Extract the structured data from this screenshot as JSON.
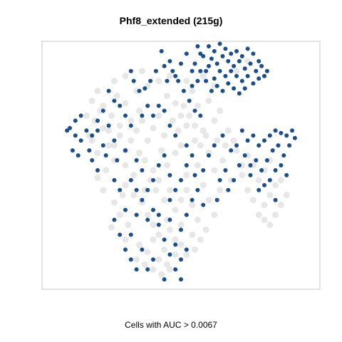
{
  "chart_data": {
    "type": "scatter",
    "title": "Phf8_extended (215g)",
    "xlabel": "Cells with AUC > 0.0067",
    "ylabel": "",
    "xlim": [
      0,
      100
    ],
    "ylim": [
      0,
      100
    ],
    "grid": false,
    "legend": "none",
    "colors": {
      "background_cells": "#d3d3d3",
      "highlighted_cells": "#1a4f8b",
      "frame": "#c8c8c8"
    },
    "series": [
      {
        "role": "background",
        "points": [
          [
            18,
            60
          ],
          [
            20,
            55
          ],
          [
            22,
            65
          ],
          [
            25,
            70
          ],
          [
            28,
            62
          ],
          [
            30,
            75
          ],
          [
            32,
            68
          ],
          [
            35,
            72
          ],
          [
            26,
            52
          ],
          [
            23,
            48
          ],
          [
            30,
            50
          ],
          [
            35,
            55
          ],
          [
            38,
            60
          ],
          [
            40,
            65
          ],
          [
            42,
            70
          ],
          [
            44,
            62
          ],
          [
            45,
            78
          ],
          [
            48,
            75
          ],
          [
            50,
            70
          ],
          [
            52,
            66
          ],
          [
            40,
            48
          ],
          [
            42,
            44
          ],
          [
            45,
            50
          ],
          [
            48,
            55
          ],
          [
            50,
            58
          ],
          [
            55,
            60
          ],
          [
            58,
            64
          ],
          [
            60,
            55
          ],
          [
            62,
            48
          ],
          [
            65,
            52
          ],
          [
            30,
            42
          ],
          [
            33,
            38
          ],
          [
            36,
            35
          ],
          [
            38,
            30
          ],
          [
            40,
            26
          ],
          [
            42,
            22
          ],
          [
            45,
            28
          ],
          [
            48,
            32
          ],
          [
            50,
            36
          ],
          [
            52,
            40
          ],
          [
            35,
            18
          ],
          [
            38,
            15
          ],
          [
            42,
            12
          ],
          [
            45,
            10
          ],
          [
            48,
            14
          ],
          [
            50,
            18
          ],
          [
            54,
            22
          ],
          [
            56,
            28
          ],
          [
            40,
            20
          ],
          [
            44,
            16
          ],
          [
            28,
            30
          ],
          [
            25,
            25
          ],
          [
            30,
            20
          ],
          [
            26,
            35
          ],
          [
            22,
            40
          ],
          [
            20,
            45
          ],
          [
            24,
            58
          ],
          [
            19,
            68
          ],
          [
            21,
            72
          ],
          [
            27,
            78
          ],
          [
            34,
            80
          ],
          [
            38,
            82
          ],
          [
            42,
            84
          ],
          [
            46,
            86
          ],
          [
            36,
            88
          ],
          [
            30,
            86
          ],
          [
            26,
            84
          ],
          [
            64,
            40
          ],
          [
            68,
            44
          ],
          [
            72,
            46
          ],
          [
            74,
            40
          ],
          [
            76,
            36
          ],
          [
            78,
            30
          ],
          [
            80,
            34
          ],
          [
            82,
            38
          ],
          [
            84,
            42
          ],
          [
            78,
            44
          ],
          [
            72,
            50
          ],
          [
            70,
            56
          ],
          [
            66,
            58
          ],
          [
            62,
            68
          ],
          [
            64,
            72
          ],
          [
            60,
            76
          ],
          [
            56,
            74
          ],
          [
            54,
            80
          ],
          [
            52,
            84
          ],
          [
            58,
            86
          ],
          [
            62,
            82
          ],
          [
            70,
            88
          ],
          [
            74,
            92
          ],
          [
            46,
            40
          ],
          [
            52,
            46
          ],
          [
            56,
            50
          ],
          [
            58,
            42
          ],
          [
            60,
            36
          ],
          [
            62,
            30
          ],
          [
            54,
            34
          ],
          [
            50,
            26
          ],
          [
            46,
            24
          ],
          [
            44,
            36
          ],
          [
            32,
            60
          ],
          [
            34,
            64
          ],
          [
            36,
            68
          ],
          [
            28,
            66
          ],
          [
            26,
            58
          ],
          [
            30,
            56
          ],
          [
            37,
            52
          ],
          [
            33,
            46
          ],
          [
            29,
            38
          ],
          [
            31,
            26
          ],
          [
            49,
            64
          ],
          [
            47,
            68
          ],
          [
            51,
            74
          ],
          [
            53,
            70
          ],
          [
            55,
            66
          ],
          [
            57,
            58
          ],
          [
            59,
            62
          ],
          [
            63,
            60
          ],
          [
            67,
            64
          ],
          [
            69,
            60
          ],
          [
            80,
            28
          ],
          [
            82,
            26
          ],
          [
            84,
            30
          ],
          [
            86,
            34
          ],
          [
            88,
            38
          ],
          [
            86,
            44
          ],
          [
            76,
            50
          ],
          [
            74,
            54
          ],
          [
            80,
            48
          ],
          [
            82,
            52
          ],
          [
            24,
            64
          ],
          [
            22,
            74
          ],
          [
            20,
            80
          ],
          [
            18,
            76
          ],
          [
            16,
            70
          ],
          [
            17,
            62
          ],
          [
            43,
            56
          ],
          [
            41,
            40
          ],
          [
            39,
            44
          ],
          [
            37,
            40
          ],
          [
            48,
            20
          ],
          [
            52,
            14
          ],
          [
            55,
            16
          ],
          [
            57,
            20
          ],
          [
            59,
            24
          ],
          [
            46,
            8
          ],
          [
            43,
            6
          ],
          [
            40,
            8
          ],
          [
            37,
            10
          ],
          [
            34,
            12
          ]
        ]
      },
      {
        "role": "highlighted",
        "points": [
          [
            60,
            98
          ],
          [
            62,
            96
          ],
          [
            64,
            99
          ],
          [
            66,
            97
          ],
          [
            68,
            95
          ],
          [
            70,
            96
          ],
          [
            72,
            94
          ],
          [
            74,
            97
          ],
          [
            76,
            95
          ],
          [
            78,
            92
          ],
          [
            61,
            93
          ],
          [
            63,
            91
          ],
          [
            65,
            94
          ],
          [
            67,
            92
          ],
          [
            69,
            90
          ],
          [
            71,
            92
          ],
          [
            73,
            89
          ],
          [
            75,
            91
          ],
          [
            77,
            88
          ],
          [
            79,
            90
          ],
          [
            64,
            88
          ],
          [
            66,
            86
          ],
          [
            68,
            88
          ],
          [
            70,
            86
          ],
          [
            72,
            84
          ],
          [
            74,
            86
          ],
          [
            76,
            83
          ],
          [
            78,
            85
          ],
          [
            80,
            86
          ],
          [
            81,
            88
          ],
          [
            62,
            85
          ],
          [
            60,
            90
          ],
          [
            58,
            94
          ],
          [
            59,
            88
          ],
          [
            63,
            82
          ],
          [
            65,
            80
          ],
          [
            67,
            83
          ],
          [
            69,
            81
          ],
          [
            71,
            79
          ],
          [
            73,
            81
          ],
          [
            56,
            98
          ],
          [
            57,
            95
          ],
          [
            55,
            91
          ],
          [
            54,
            88
          ],
          [
            46,
            92
          ],
          [
            47,
            88
          ],
          [
            45,
            84
          ],
          [
            44,
            90
          ],
          [
            48,
            86
          ],
          [
            50,
            91
          ],
          [
            52,
            95
          ],
          [
            43,
            96
          ],
          [
            41,
            88
          ],
          [
            39,
            84
          ],
          [
            33,
            84
          ],
          [
            35,
            80
          ],
          [
            37,
            81
          ],
          [
            32,
            88
          ],
          [
            22,
            72
          ],
          [
            20,
            68
          ],
          [
            24,
            66
          ],
          [
            26,
            60
          ],
          [
            18,
            62
          ],
          [
            16,
            64
          ],
          [
            22,
            58
          ],
          [
            20,
            64
          ],
          [
            10,
            65
          ],
          [
            12,
            62
          ],
          [
            14,
            60
          ],
          [
            11,
            56
          ],
          [
            9,
            64
          ],
          [
            13,
            54
          ],
          [
            17,
            56
          ],
          [
            23,
            54
          ],
          [
            27,
            52
          ],
          [
            30,
            56
          ],
          [
            34,
            52
          ],
          [
            36,
            48
          ],
          [
            38,
            40
          ],
          [
            40,
            32
          ],
          [
            42,
            26
          ],
          [
            44,
            20
          ],
          [
            46,
            14
          ],
          [
            48,
            18
          ],
          [
            50,
            24
          ],
          [
            52,
            30
          ],
          [
            54,
            36
          ],
          [
            50,
            12
          ],
          [
            48,
            8
          ],
          [
            40,
            12
          ],
          [
            38,
            8
          ],
          [
            36,
            16
          ],
          [
            32,
            22
          ],
          [
            30,
            32
          ],
          [
            28,
            40
          ],
          [
            26,
            44
          ],
          [
            34,
            30
          ],
          [
            56,
            40
          ],
          [
            58,
            48
          ],
          [
            60,
            54
          ],
          [
            62,
            58
          ],
          [
            65,
            62
          ],
          [
            68,
            56
          ],
          [
            70,
            58
          ],
          [
            72,
            64
          ],
          [
            74,
            60
          ],
          [
            76,
            62
          ],
          [
            78,
            58
          ],
          [
            80,
            60
          ],
          [
            82,
            62
          ],
          [
            84,
            64
          ],
          [
            86,
            63
          ],
          [
            88,
            62
          ],
          [
            90,
            64
          ],
          [
            91,
            61
          ],
          [
            89,
            58
          ],
          [
            85,
            58
          ],
          [
            87,
            54
          ],
          [
            83,
            56
          ],
          [
            81,
            52
          ],
          [
            79,
            48
          ],
          [
            77,
            52
          ],
          [
            73,
            54
          ],
          [
            75,
            50
          ],
          [
            71,
            50
          ],
          [
            66,
            48
          ],
          [
            64,
            44
          ],
          [
            84,
            48
          ],
          [
            82,
            44
          ],
          [
            78,
            40
          ],
          [
            40,
            70
          ],
          [
            42,
            74
          ],
          [
            44,
            72
          ],
          [
            38,
            74
          ],
          [
            36,
            70
          ],
          [
            46,
            66
          ],
          [
            48,
            62
          ],
          [
            52,
            58
          ],
          [
            54,
            54
          ],
          [
            28,
            74
          ],
          [
            30,
            70
          ],
          [
            32,
            66
          ],
          [
            24,
            80
          ],
          [
            26,
            76
          ],
          [
            18,
            52
          ],
          [
            20,
            48
          ],
          [
            14,
            70
          ],
          [
            12,
            68
          ],
          [
            52,
            16
          ],
          [
            46,
            28
          ],
          [
            57,
            88
          ],
          [
            59,
            84
          ],
          [
            61,
            80
          ],
          [
            56,
            84
          ],
          [
            54,
            82
          ],
          [
            49,
            84
          ],
          [
            51,
            80
          ],
          [
            53,
            76
          ],
          [
            55,
            72
          ],
          [
            57,
            70
          ],
          [
            44,
            54
          ],
          [
            42,
            50
          ],
          [
            40,
            44
          ],
          [
            46,
            46
          ],
          [
            48,
            40
          ],
          [
            50,
            44
          ],
          [
            36,
            36
          ],
          [
            34,
            40
          ],
          [
            32,
            44
          ],
          [
            38,
            28
          ],
          [
            28,
            22
          ],
          [
            26,
            28
          ],
          [
            30,
            16
          ],
          [
            32,
            12
          ],
          [
            34,
            8
          ],
          [
            50,
            4
          ],
          [
            44,
            4
          ],
          [
            42,
            30
          ],
          [
            46,
            36
          ],
          [
            52,
            50
          ],
          [
            55,
            46
          ],
          [
            58,
            34
          ],
          [
            63,
            36
          ],
          [
            67,
            40
          ],
          [
            69,
            44
          ],
          [
            75,
            46
          ],
          [
            80,
            42
          ],
          [
            86,
            50
          ],
          [
            88,
            46
          ],
          [
            84,
            36
          ]
        ]
      }
    ]
  }
}
